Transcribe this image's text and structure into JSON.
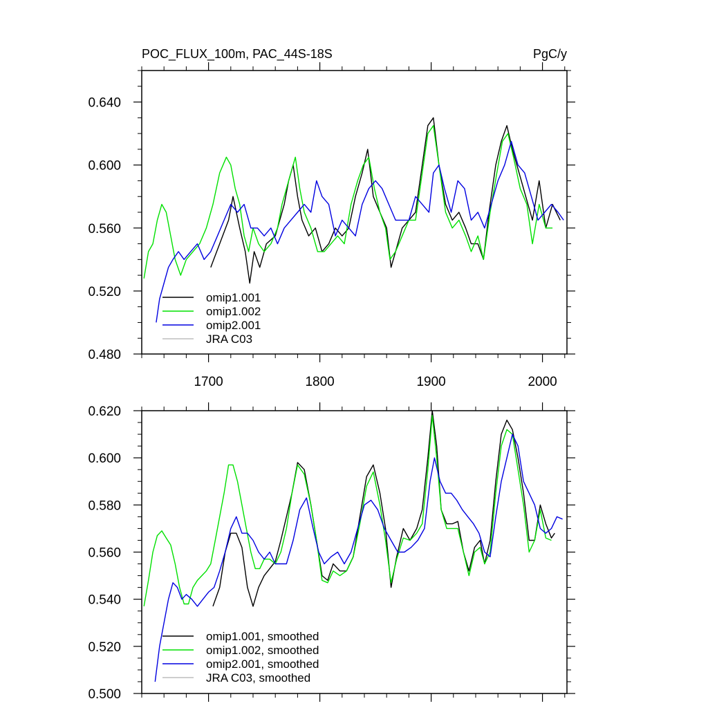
{
  "chart_data": [
    {
      "type": "line",
      "title": "POC_FLUX_100m, PAC_44S-18S",
      "units": "PgC/y",
      "xlim": [
        1640,
        2022
      ],
      "ylim": [
        0.48,
        0.66
      ],
      "x_ticks": [
        1700,
        1800,
        1900,
        2000
      ],
      "y_ticks": [
        0.48,
        0.52,
        0.56,
        0.6,
        0.64
      ],
      "y_tick_labels": [
        "0.480",
        "0.520",
        "0.560",
        "0.600",
        "0.640"
      ],
      "legend_position": "bottom-left",
      "grid": false,
      "series": [
        {
          "name": "omip1.001",
          "color": "#000000",
          "x": [
            1702,
            1710,
            1718,
            1722,
            1728,
            1733,
            1737,
            1741,
            1746,
            1752,
            1760,
            1768,
            1772,
            1776,
            1780,
            1784,
            1790,
            1796,
            1802,
            1808,
            1814,
            1820,
            1826,
            1832,
            1838,
            1843,
            1848,
            1854,
            1860,
            1864,
            1868,
            1874,
            1880,
            1886,
            1892,
            1897,
            1902,
            1907,
            1913,
            1919,
            1925,
            1931,
            1936,
            1942,
            1947,
            1952,
            1958,
            1963,
            1968,
            1973,
            1979,
            1985,
            1991,
            1997,
            2003,
            2009,
            2016
          ],
          "y": [
            0.535,
            0.55,
            0.565,
            0.58,
            0.56,
            0.545,
            0.525,
            0.545,
            0.535,
            0.55,
            0.555,
            0.575,
            0.59,
            0.6,
            0.58,
            0.565,
            0.555,
            0.56,
            0.545,
            0.55,
            0.56,
            0.555,
            0.56,
            0.58,
            0.595,
            0.61,
            0.58,
            0.57,
            0.56,
            0.535,
            0.545,
            0.56,
            0.565,
            0.57,
            0.6,
            0.625,
            0.63,
            0.6,
            0.575,
            0.565,
            0.57,
            0.56,
            0.55,
            0.55,
            0.54,
            0.57,
            0.6,
            0.615,
            0.625,
            0.61,
            0.595,
            0.58,
            0.565,
            0.59,
            0.56,
            0.575,
            0.565
          ]
        },
        {
          "name": "omip1.002",
          "color": "#00e000",
          "x": [
            1642,
            1646,
            1650,
            1654,
            1658,
            1662,
            1666,
            1670,
            1675,
            1680,
            1686,
            1692,
            1698,
            1704,
            1710,
            1716,
            1720,
            1724,
            1728,
            1732,
            1736,
            1740,
            1745,
            1750,
            1756,
            1762,
            1766,
            1770,
            1774,
            1778,
            1782,
            1786,
            1792,
            1798,
            1804,
            1810,
            1816,
            1822,
            1828,
            1834,
            1839,
            1844,
            1849,
            1854,
            1859,
            1863,
            1868,
            1874,
            1880,
            1886,
            1892,
            1897,
            1902,
            1907,
            1913,
            1919,
            1925,
            1931,
            1936,
            1942,
            1947,
            1953,
            1959,
            1964,
            1969,
            1974,
            1980,
            1986,
            1991,
            1997,
            2003,
            2009
          ],
          "y": [
            0.528,
            0.545,
            0.55,
            0.565,
            0.575,
            0.57,
            0.555,
            0.54,
            0.53,
            0.54,
            0.545,
            0.55,
            0.56,
            0.575,
            0.595,
            0.605,
            0.6,
            0.585,
            0.575,
            0.555,
            0.545,
            0.56,
            0.55,
            0.545,
            0.55,
            0.56,
            0.575,
            0.585,
            0.595,
            0.605,
            0.585,
            0.57,
            0.56,
            0.545,
            0.545,
            0.55,
            0.555,
            0.55,
            0.575,
            0.59,
            0.6,
            0.605,
            0.585,
            0.57,
            0.56,
            0.54,
            0.545,
            0.555,
            0.565,
            0.565,
            0.595,
            0.62,
            0.625,
            0.6,
            0.57,
            0.56,
            0.565,
            0.555,
            0.545,
            0.555,
            0.54,
            0.57,
            0.595,
            0.615,
            0.62,
            0.605,
            0.585,
            0.575,
            0.55,
            0.575,
            0.56,
            0.56
          ]
        },
        {
          "name": "omip2.001",
          "color": "#0000e0",
          "x": [
            1653,
            1656,
            1660,
            1664,
            1668,
            1673,
            1678,
            1684,
            1690,
            1696,
            1702,
            1708,
            1714,
            1720,
            1726,
            1732,
            1738,
            1744,
            1750,
            1756,
            1762,
            1768,
            1774,
            1780,
            1786,
            1792,
            1797,
            1802,
            1808,
            1814,
            1820,
            1826,
            1832,
            1838,
            1844,
            1850,
            1856,
            1862,
            1868,
            1874,
            1880,
            1886,
            1892,
            1898,
            1902,
            1907,
            1912,
            1918,
            1924,
            1930,
            1936,
            1942,
            1948,
            1954,
            1960,
            1966,
            1972,
            1978,
            1984,
            1990,
            1996,
            2002,
            2008,
            2014,
            2019
          ],
          "y": [
            0.5,
            0.515,
            0.525,
            0.535,
            0.54,
            0.545,
            0.54,
            0.545,
            0.55,
            0.54,
            0.545,
            0.555,
            0.565,
            0.575,
            0.57,
            0.575,
            0.56,
            0.56,
            0.555,
            0.56,
            0.55,
            0.56,
            0.565,
            0.57,
            0.575,
            0.57,
            0.59,
            0.58,
            0.575,
            0.555,
            0.565,
            0.56,
            0.555,
            0.575,
            0.585,
            0.59,
            0.585,
            0.575,
            0.565,
            0.565,
            0.565,
            0.58,
            0.575,
            0.57,
            0.595,
            0.6,
            0.585,
            0.57,
            0.59,
            0.585,
            0.565,
            0.57,
            0.56,
            0.575,
            0.59,
            0.6,
            0.615,
            0.6,
            0.595,
            0.58,
            0.565,
            0.57,
            0.575,
            0.57,
            0.565
          ]
        },
        {
          "name": "JRA C03",
          "color": "#bdbdbd",
          "x": [],
          "y": []
        }
      ]
    },
    {
      "type": "line",
      "title": "",
      "xlim": [
        1640,
        2022
      ],
      "ylim": [
        0.5,
        0.62
      ],
      "x_ticks": [
        1700,
        1800,
        1900,
        2000
      ],
      "y_ticks": [
        0.5,
        0.52,
        0.54,
        0.56,
        0.58,
        0.6,
        0.62
      ],
      "y_tick_labels": [
        "0.500",
        "0.520",
        "0.540",
        "0.560",
        "0.580",
        "0.600",
        "0.620"
      ],
      "legend_position": "bottom-left",
      "grid": false,
      "series": [
        {
          "name": "omip1.001, smoothed",
          "color": "#000000",
          "x": [
            1704,
            1710,
            1715,
            1720,
            1725,
            1730,
            1735,
            1740,
            1745,
            1750,
            1755,
            1760,
            1765,
            1770,
            1775,
            1780,
            1786,
            1792,
            1797,
            1802,
            1807,
            1812,
            1818,
            1824,
            1830,
            1836,
            1842,
            1848,
            1854,
            1859,
            1864,
            1869,
            1875,
            1881,
            1887,
            1892,
            1897,
            1901,
            1905,
            1909,
            1914,
            1919,
            1924,
            1929,
            1934,
            1939,
            1944,
            1948,
            1953,
            1958,
            1963,
            1968,
            1973,
            1978,
            1983,
            1988,
            1993,
            1998,
            2003,
            2008,
            2011
          ],
          "y": [
            0.537,
            0.545,
            0.56,
            0.568,
            0.568,
            0.562,
            0.545,
            0.537,
            0.545,
            0.55,
            0.553,
            0.556,
            0.565,
            0.575,
            0.585,
            0.598,
            0.595,
            0.58,
            0.565,
            0.55,
            0.548,
            0.555,
            0.552,
            0.552,
            0.558,
            0.575,
            0.592,
            0.597,
            0.585,
            0.57,
            0.545,
            0.558,
            0.57,
            0.565,
            0.57,
            0.578,
            0.6,
            0.62,
            0.605,
            0.578,
            0.572,
            0.572,
            0.573,
            0.56,
            0.552,
            0.562,
            0.565,
            0.555,
            0.565,
            0.59,
            0.61,
            0.616,
            0.612,
            0.6,
            0.585,
            0.565,
            0.565,
            0.58,
            0.572,
            0.566,
            0.568
          ]
        },
        {
          "name": "omip1.002, smoothed",
          "color": "#00e000",
          "x": [
            1642,
            1646,
            1650,
            1654,
            1658,
            1662,
            1666,
            1670,
            1674,
            1678,
            1682,
            1686,
            1690,
            1694,
            1698,
            1702,
            1706,
            1710,
            1714,
            1718,
            1722,
            1726,
            1730,
            1734,
            1738,
            1742,
            1746,
            1750,
            1755,
            1760,
            1765,
            1770,
            1775,
            1780,
            1786,
            1792,
            1797,
            1802,
            1807,
            1812,
            1818,
            1824,
            1830,
            1836,
            1842,
            1848,
            1854,
            1859,
            1864,
            1869,
            1875,
            1881,
            1887,
            1892,
            1897,
            1901,
            1905,
            1909,
            1914,
            1919,
            1924,
            1929,
            1934,
            1939,
            1944,
            1948,
            1953,
            1958,
            1963,
            1968,
            1973,
            1978,
            1983,
            1988,
            1993,
            1998,
            2003,
            2008
          ],
          "y": [
            0.537,
            0.548,
            0.56,
            0.567,
            0.569,
            0.566,
            0.563,
            0.555,
            0.545,
            0.538,
            0.538,
            0.545,
            0.548,
            0.55,
            0.552,
            0.555,
            0.565,
            0.575,
            0.585,
            0.597,
            0.597,
            0.59,
            0.58,
            0.57,
            0.56,
            0.553,
            0.553,
            0.557,
            0.557,
            0.555,
            0.56,
            0.57,
            0.585,
            0.597,
            0.593,
            0.58,
            0.565,
            0.548,
            0.547,
            0.552,
            0.55,
            0.552,
            0.558,
            0.572,
            0.588,
            0.594,
            0.58,
            0.565,
            0.547,
            0.557,
            0.566,
            0.565,
            0.568,
            0.572,
            0.595,
            0.618,
            0.6,
            0.578,
            0.57,
            0.57,
            0.57,
            0.56,
            0.55,
            0.56,
            0.562,
            0.555,
            0.56,
            0.585,
            0.605,
            0.612,
            0.61,
            0.595,
            0.58,
            0.56,
            0.565,
            0.578,
            0.566,
            0.565
          ]
        },
        {
          "name": "omip2.001, smoothed",
          "color": "#0000e0",
          "x": [
            1652,
            1656,
            1660,
            1664,
            1668,
            1672,
            1676,
            1680,
            1685,
            1690,
            1695,
            1700,
            1705,
            1710,
            1715,
            1720,
            1725,
            1730,
            1735,
            1740,
            1745,
            1750,
            1755,
            1760,
            1765,
            1770,
            1776,
            1782,
            1788,
            1794,
            1799,
            1804,
            1810,
            1816,
            1822,
            1828,
            1834,
            1840,
            1846,
            1852,
            1858,
            1864,
            1870,
            1876,
            1882,
            1888,
            1894,
            1899,
            1903,
            1908,
            1913,
            1918,
            1923,
            1928,
            1933,
            1938,
            1943,
            1948,
            1953,
            1958,
            1963,
            1968,
            1973,
            1978,
            1983,
            1988,
            1993,
            1998,
            2003,
            2008,
            2013,
            2018
          ],
          "y": [
            0.505,
            0.52,
            0.53,
            0.54,
            0.547,
            0.545,
            0.54,
            0.542,
            0.54,
            0.537,
            0.54,
            0.543,
            0.545,
            0.552,
            0.56,
            0.57,
            0.575,
            0.568,
            0.568,
            0.565,
            0.56,
            0.557,
            0.56,
            0.555,
            0.555,
            0.555,
            0.565,
            0.578,
            0.583,
            0.57,
            0.56,
            0.555,
            0.558,
            0.56,
            0.555,
            0.56,
            0.57,
            0.58,
            0.582,
            0.578,
            0.57,
            0.565,
            0.56,
            0.56,
            0.562,
            0.565,
            0.57,
            0.59,
            0.6,
            0.59,
            0.585,
            0.585,
            0.582,
            0.578,
            0.575,
            0.572,
            0.568,
            0.56,
            0.558,
            0.575,
            0.59,
            0.6,
            0.61,
            0.605,
            0.59,
            0.585,
            0.58,
            0.57,
            0.568,
            0.57,
            0.575,
            0.574
          ]
        },
        {
          "name": "JRA C03, smoothed",
          "color": "#bdbdbd",
          "x": [],
          "y": []
        }
      ]
    }
  ]
}
